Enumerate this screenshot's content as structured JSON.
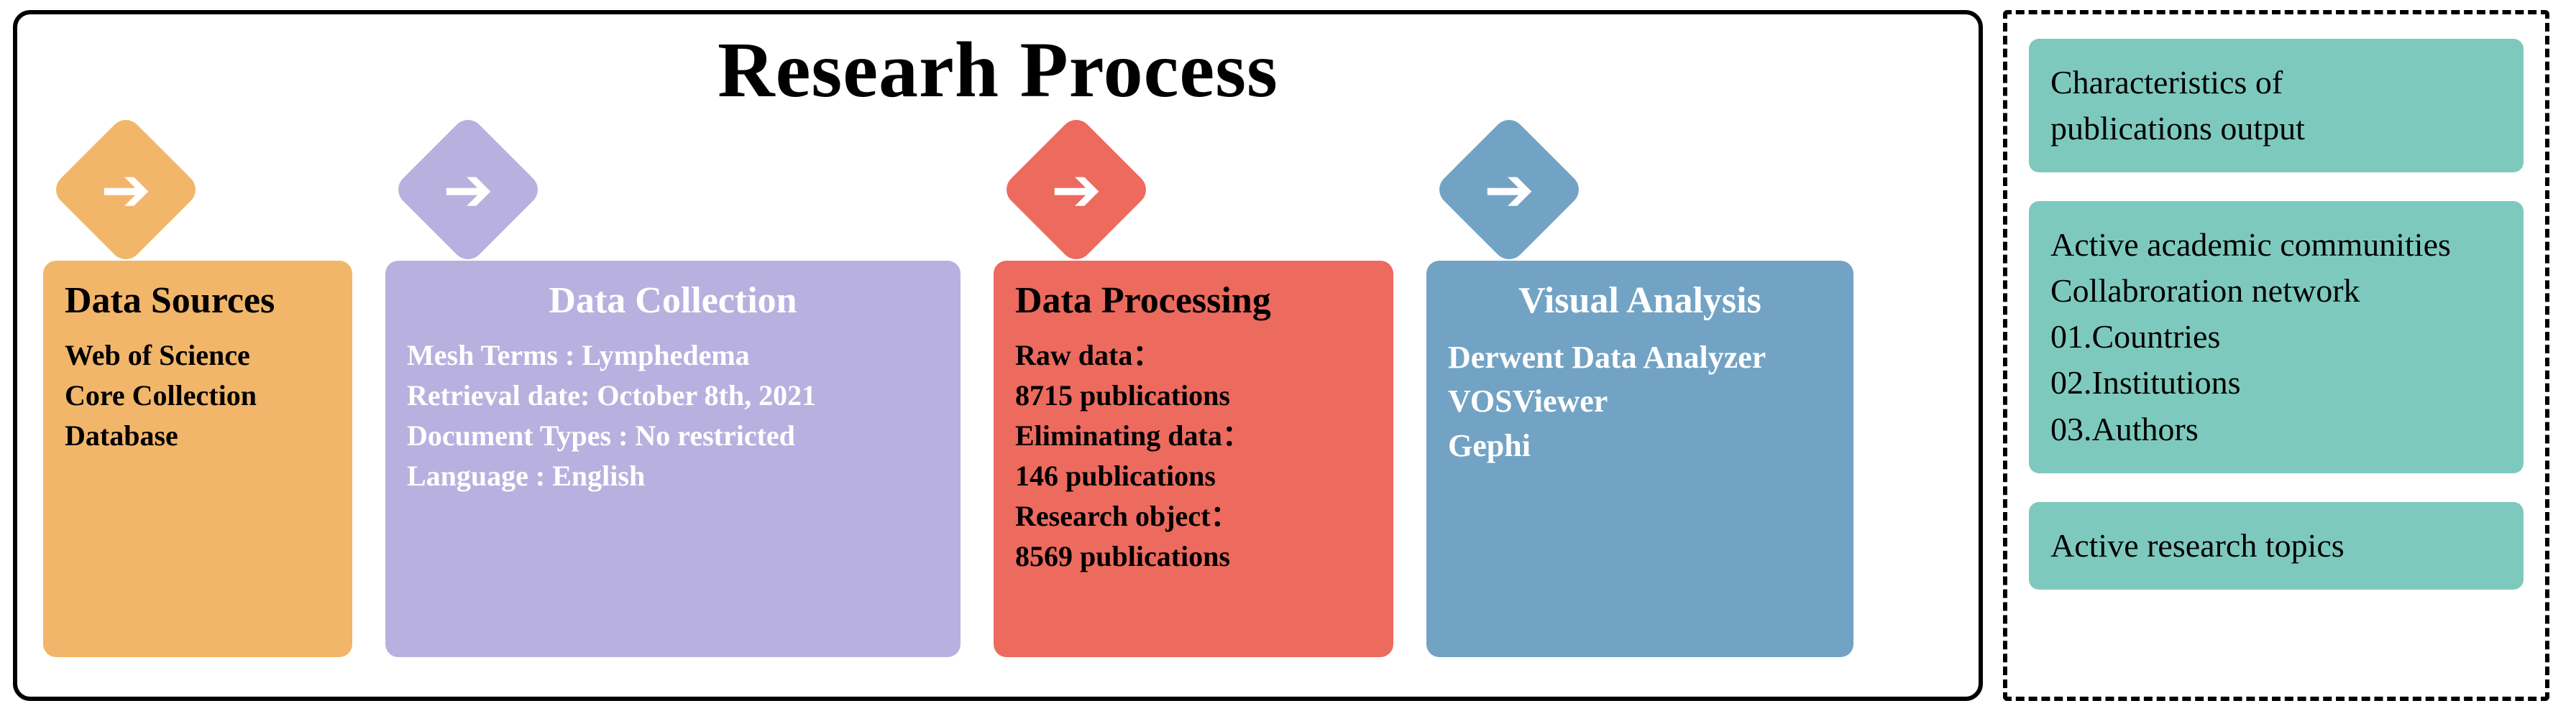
{
  "title": "Researh Process",
  "colors": {
    "orange": "#f2b66a",
    "lavender": "#b8b1df",
    "red": "#ec6a5e",
    "blue": "#73a3c4",
    "teal": "#7ec9bd",
    "arrow": "#ffffff",
    "border": "#000000"
  },
  "stages": [
    {
      "color_key": "orange",
      "title": "Data Sources",
      "lines": [
        "Web of Science",
        "Core Collection",
        "Database"
      ]
    },
    {
      "color_key": "lavender",
      "title": "Data Collection",
      "lines": [
        "Mesh Terms : Lymphedema",
        "Retrieval date: October 8th, 2021",
        "Document Types : No restricted",
        "Language : English"
      ]
    },
    {
      "color_key": "red",
      "title": "Data Processing",
      "lines": [
        "Raw data：",
        "8715 publications",
        "Eliminating data：",
        "146 publications",
        "Research object：",
        "8569 publications"
      ]
    },
    {
      "color_key": "blue",
      "title": "Visual Analysis",
      "lines": [
        "Derwent Data Analyzer",
        "VOSViewer",
        "Gephi"
      ]
    }
  ],
  "right": [
    {
      "lines": [
        "Characteristics of",
        "publications output"
      ]
    },
    {
      "lines": [
        "Active academic communities",
        "Collabroration network",
        "01.Countries",
        "02.Institutions",
        "03.Authors"
      ]
    },
    {
      "lines": [
        "Active research topics"
      ]
    }
  ]
}
